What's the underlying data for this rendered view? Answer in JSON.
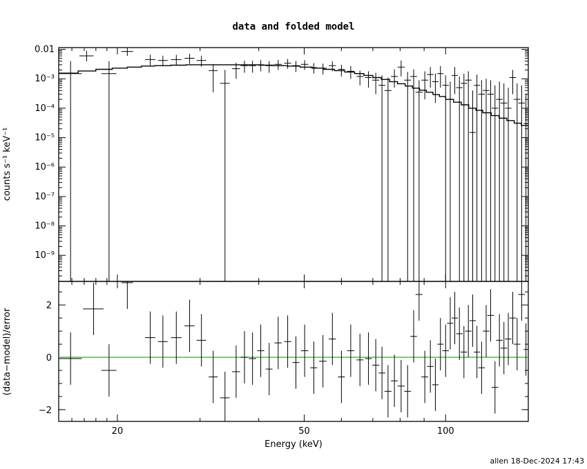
{
  "title": "data and folded model",
  "footer": "allen 18-Dec-2024 17:43",
  "colors": {
    "data": "#000000",
    "model": "#000000",
    "zero_line": "#00cc00"
  },
  "chart_data": [
    {
      "type": "scatter",
      "panel": "top",
      "scale": {
        "x": "log",
        "y": "log"
      },
      "xlim": [
        15,
        150
      ],
      "ylim": [
        1.3e-10,
        0.0115
      ],
      "xlabel": "",
      "ylabel": "counts s⁻¹ keV⁻¹",
      "ytick_labels": [
        "0.01",
        "10⁻³",
        "10⁻⁴",
        "10⁻⁵",
        "10⁻⁶",
        "10⁻⁷",
        "10⁻⁸",
        "10⁻⁹"
      ],
      "ytick_values": [
        0.01,
        0.001,
        0.0001,
        1e-05,
        1e-06,
        1e-07,
        1e-08,
        1e-09
      ],
      "model_steps": [
        [
          15.0,
          16.5,
          0.00155
        ],
        [
          16.5,
          18.0,
          0.00185
        ],
        [
          18.0,
          19.5,
          0.0021
        ],
        [
          19.5,
          21.0,
          0.0023
        ],
        [
          21.0,
          22.5,
          0.0025
        ],
        [
          22.5,
          24.0,
          0.0027
        ],
        [
          24.0,
          26.0,
          0.0028
        ],
        [
          26.0,
          28.0,
          0.0029
        ],
        [
          28.0,
          31.0,
          0.003
        ],
        [
          31.0,
          34.0,
          0.003
        ],
        [
          34.0,
          37.0,
          0.003
        ],
        [
          37.0,
          40.0,
          0.003
        ],
        [
          40.0,
          43.0,
          0.0029
        ],
        [
          43.0,
          46.0,
          0.0028
        ],
        [
          46.0,
          49.0,
          0.0027
        ],
        [
          49.0,
          52.0,
          0.0025
        ],
        [
          52.0,
          55.0,
          0.0023
        ],
        [
          55.0,
          58.0,
          0.0021
        ],
        [
          58.0,
          61.0,
          0.0019
        ],
        [
          61.0,
          64.0,
          0.0017
        ],
        [
          64.0,
          67.0,
          0.0015
        ],
        [
          67.0,
          70.0,
          0.0013
        ],
        [
          70.0,
          73.0,
          0.0011
        ],
        [
          73.0,
          76.0,
          0.00095
        ],
        [
          76.0,
          79.0,
          0.0008
        ],
        [
          79.0,
          82.0,
          0.00068
        ],
        [
          82.0,
          85.0,
          0.00057
        ],
        [
          85.0,
          88.0,
          0.00048
        ],
        [
          88.0,
          91.0,
          0.00041
        ],
        [
          91.0,
          94.0,
          0.00035
        ],
        [
          94.0,
          97.0,
          0.00029
        ],
        [
          97.0,
          100.0,
          0.00025
        ],
        [
          100.0,
          104.0,
          0.0002
        ],
        [
          104.0,
          108.0,
          0.00016
        ],
        [
          108.0,
          112.0,
          0.00013
        ],
        [
          112.0,
          116.0,
          0.0001
        ],
        [
          116.0,
          120.0,
          8.5e-05
        ],
        [
          120.0,
          125.0,
          7e-05
        ],
        [
          125.0,
          130.0,
          5.6e-05
        ],
        [
          130.0,
          135.0,
          4.6e-05
        ],
        [
          135.0,
          140.0,
          3.8e-05
        ],
        [
          140.0,
          145.0,
          3.1e-05
        ],
        [
          145.0,
          150.0,
          2.6e-05
        ]
      ],
      "points": [
        {
          "x": 15.9,
          "xerr": 0.9,
          "y": 0.0015,
          "ylo": 1.3e-10,
          "yhi": 0.004
        },
        {
          "x": 17.2,
          "xerr": 0.6,
          "y": 0.006,
          "ylo": 0.0039,
          "yhi": 0.0089
        },
        {
          "x": 19.2,
          "xerr": 0.7,
          "y": 0.0015,
          "ylo": 1.3e-10,
          "yhi": 0.004
        },
        {
          "x": 21.0,
          "xerr": 0.6,
          "y": 0.0085,
          "ylo": 0.006,
          "yhi": 0.0115
        },
        {
          "x": 23.5,
          "xerr": 0.6,
          "y": 0.0045,
          "ylo": 0.0028,
          "yhi": 0.0066
        },
        {
          "x": 25.0,
          "xerr": 0.6,
          "y": 0.0042,
          "ylo": 0.0027,
          "yhi": 0.0061
        },
        {
          "x": 26.7,
          "xerr": 0.7,
          "y": 0.0045,
          "ylo": 0.0029,
          "yhi": 0.0065
        },
        {
          "x": 28.5,
          "xerr": 0.7,
          "y": 0.005,
          "ylo": 0.0032,
          "yhi": 0.0071
        },
        {
          "x": 30.2,
          "xerr": 0.7,
          "y": 0.0042,
          "ylo": 0.0026,
          "yhi": 0.0061
        },
        {
          "x": 32.0,
          "xerr": 0.7,
          "y": 0.0019,
          "ylo": 0.00035,
          "yhi": 0.0032
        },
        {
          "x": 33.9,
          "xerr": 0.8,
          "y": 0.0007,
          "ylo": 1.3e-10,
          "yhi": 0.002
        },
        {
          "x": 35.8,
          "xerr": 0.7,
          "y": 0.0022,
          "ylo": 0.001,
          "yhi": 0.0035
        },
        {
          "x": 37.3,
          "xerr": 0.7,
          "y": 0.0028,
          "ylo": 0.0016,
          "yhi": 0.0041
        },
        {
          "x": 38.8,
          "xerr": 0.7,
          "y": 0.0028,
          "ylo": 0.0016,
          "yhi": 0.0041
        },
        {
          "x": 40.4,
          "xerr": 0.7,
          "y": 0.003,
          "ylo": 0.0018,
          "yhi": 0.0043
        },
        {
          "x": 42.1,
          "xerr": 0.7,
          "y": 0.0028,
          "ylo": 0.0016,
          "yhi": 0.004
        },
        {
          "x": 44.0,
          "xerr": 0.8,
          "y": 0.0031,
          "ylo": 0.002,
          "yhi": 0.0044
        },
        {
          "x": 46.1,
          "xerr": 0.8,
          "y": 0.0034,
          "ylo": 0.0022,
          "yhi": 0.0047
        },
        {
          "x": 48.0,
          "xerr": 0.8,
          "y": 0.0028,
          "ylo": 0.0017,
          "yhi": 0.004
        },
        {
          "x": 50.1,
          "xerr": 0.9,
          "y": 0.0031,
          "ylo": 0.002,
          "yhi": 0.0043
        },
        {
          "x": 52.4,
          "xerr": 0.9,
          "y": 0.0024,
          "ylo": 0.0015,
          "yhi": 0.0034
        },
        {
          "x": 54.8,
          "xerr": 1.0,
          "y": 0.0023,
          "ylo": 0.0014,
          "yhi": 0.0033
        },
        {
          "x": 57.4,
          "xerr": 1.0,
          "y": 0.0028,
          "ylo": 0.0018,
          "yhi": 0.0039
        },
        {
          "x": 60.0,
          "xerr": 1.0,
          "y": 0.0021,
          "ylo": 0.0012,
          "yhi": 0.003
        },
        {
          "x": 62.8,
          "xerr": 1.1,
          "y": 0.0018,
          "ylo": 0.001,
          "yhi": 0.0027
        },
        {
          "x": 65.7,
          "xerr": 1.1,
          "y": 0.0012,
          "ylo": 0.0006,
          "yhi": 0.0019
        },
        {
          "x": 68.5,
          "xerr": 1.1,
          "y": 0.0011,
          "ylo": 0.0005,
          "yhi": 0.0018
        },
        {
          "x": 71.0,
          "xerr": 1.2,
          "y": 0.0009,
          "ylo": 0.0003,
          "yhi": 0.0016
        },
        {
          "x": 73.2,
          "xerr": 1.2,
          "y": 0.0006,
          "ylo": 1.3e-10,
          "yhi": 0.0013
        },
        {
          "x": 75.4,
          "xerr": 1.3,
          "y": 0.0004,
          "ylo": 1.3e-10,
          "yhi": 0.0011
        },
        {
          "x": 77.8,
          "xerr": 1.3,
          "y": 0.0012,
          "ylo": 0.0005,
          "yhi": 0.0021
        },
        {
          "x": 80.4,
          "xerr": 1.4,
          "y": 0.0025,
          "ylo": 0.0012,
          "yhi": 0.0042
        },
        {
          "x": 83.0,
          "xerr": 1.4,
          "y": 0.0009,
          "ylo": 1.3e-10,
          "yhi": 0.0017
        },
        {
          "x": 85.5,
          "xerr": 1.4,
          "y": 0.0012,
          "ylo": 1.3e-10,
          "yhi": 0.0021
        },
        {
          "x": 87.8,
          "xerr": 1.5,
          "y": 0.00035,
          "ylo": 1.3e-10,
          "yhi": 0.0009
        },
        {
          "x": 90.3,
          "xerr": 1.5,
          "y": 0.0009,
          "ylo": 0.0002,
          "yhi": 0.0018
        },
        {
          "x": 92.8,
          "xerr": 1.5,
          "y": 0.0014,
          "ylo": 0.0005,
          "yhi": 0.0025
        },
        {
          "x": 95.1,
          "xerr": 1.5,
          "y": 0.0008,
          "ylo": 0.00015,
          "yhi": 0.0015
        },
        {
          "x": 97.5,
          "xerr": 1.5,
          "y": 0.0015,
          "ylo": 0.0005,
          "yhi": 0.0027
        },
        {
          "x": 100.0,
          "xerr": 1.6,
          "y": 0.0006,
          "ylo": 1.3e-10,
          "yhi": 0.0013
        },
        {
          "x": 102.3,
          "xerr": 1.6,
          "y": 0.0002,
          "ylo": 1.3e-10,
          "yhi": 0.0008
        },
        {
          "x": 104.6,
          "xerr": 1.6,
          "y": 0.0013,
          "ylo": 0.0003,
          "yhi": 0.0025
        },
        {
          "x": 107.0,
          "xerr": 1.7,
          "y": 0.0005,
          "ylo": 1.3e-10,
          "yhi": 0.0012
        },
        {
          "x": 109.4,
          "xerr": 1.7,
          "y": 0.0007,
          "ylo": 1.3e-10,
          "yhi": 0.0015
        },
        {
          "x": 111.8,
          "xerr": 1.8,
          "y": 0.0009,
          "ylo": 1.3e-10,
          "yhi": 0.0018
        },
        {
          "x": 114.2,
          "xerr": 1.8,
          "y": 1.5e-05,
          "ylo": 1.3e-10,
          "yhi": 0.0004
        },
        {
          "x": 116.6,
          "xerr": 1.8,
          "y": 0.0006,
          "ylo": 1.3e-10,
          "yhi": 0.0014
        },
        {
          "x": 119.3,
          "xerr": 1.9,
          "y": 0.0003,
          "ylo": 1.3e-10,
          "yhi": 0.0009
        },
        {
          "x": 122.0,
          "xerr": 2.0,
          "y": 0.0004,
          "ylo": 1.3e-10,
          "yhi": 0.001
        },
        {
          "x": 124.7,
          "xerr": 2.0,
          "y": 0.0003,
          "ylo": 1.3e-10,
          "yhi": 0.0009
        },
        {
          "x": 127.4,
          "xerr": 2.1,
          "y": 0.0001,
          "ylo": 1.3e-10,
          "yhi": 0.0006
        },
        {
          "x": 130.2,
          "xerr": 2.1,
          "y": 0.0002,
          "ylo": 1.3e-10,
          "yhi": 0.0008
        },
        {
          "x": 133.1,
          "xerr": 2.2,
          "y": 0.00015,
          "ylo": 1.3e-10,
          "yhi": 0.0007
        },
        {
          "x": 136.0,
          "xerr": 2.2,
          "y": 0.0001,
          "ylo": 1.3e-10,
          "yhi": 0.0005
        },
        {
          "x": 139.0,
          "xerr": 2.3,
          "y": 0.0011,
          "ylo": 0.0003,
          "yhi": 0.002
        },
        {
          "x": 142.0,
          "xerr": 2.3,
          "y": 0.0002,
          "ylo": 1.3e-10,
          "yhi": 0.0007
        },
        {
          "x": 145.2,
          "xerr": 2.4,
          "y": 0.00015,
          "ylo": 1.3e-10,
          "yhi": 0.0006
        },
        {
          "x": 148.3,
          "xerr": 1.7,
          "y": 3e-05,
          "ylo": 1.3e-10,
          "yhi": 0.0003
        }
      ]
    },
    {
      "type": "scatter",
      "panel": "bottom",
      "scale": {
        "x": "log",
        "y": "linear"
      },
      "xlim": [
        15,
        150
      ],
      "ylim": [
        -2.45,
        2.9
      ],
      "xlabel": "Energy (keV)",
      "ylabel": "(data−model)/error",
      "xtick_labels": [
        "20",
        "50",
        "100"
      ],
      "xtick_values": [
        20,
        50,
        100
      ],
      "ytick_labels": [
        "2",
        "0",
        "−2"
      ],
      "ytick_values": [
        2,
        0,
        -2
      ],
      "zero_line": 0,
      "points": [
        {
          "x": 15.9,
          "xerr": 0.9,
          "y": -0.05,
          "yerr": 1.0
        },
        {
          "x": 17.8,
          "xerr": 0.9,
          "y": 1.85,
          "yerr": 1.0
        },
        {
          "x": 19.2,
          "xerr": 0.7,
          "y": -0.5,
          "yerr": 1.0
        },
        {
          "x": 21.0,
          "xerr": 0.6,
          "y": 2.85,
          "yerr": 1.0
        },
        {
          "x": 23.5,
          "xerr": 0.6,
          "y": 0.75,
          "yerr": 1.0
        },
        {
          "x": 25.0,
          "xerr": 0.6,
          "y": 0.6,
          "yerr": 1.0
        },
        {
          "x": 26.7,
          "xerr": 0.7,
          "y": 0.75,
          "yerr": 1.0
        },
        {
          "x": 28.5,
          "xerr": 0.7,
          "y": 1.2,
          "yerr": 1.0
        },
        {
          "x": 30.2,
          "xerr": 0.7,
          "y": 0.65,
          "yerr": 1.0
        },
        {
          "x": 32.0,
          "xerr": 0.7,
          "y": -0.75,
          "yerr": 1.0
        },
        {
          "x": 33.9,
          "xerr": 0.8,
          "y": -1.55,
          "yerr": 1.0
        },
        {
          "x": 35.8,
          "xerr": 0.7,
          "y": -0.55,
          "yerr": 1.0
        },
        {
          "x": 37.3,
          "xerr": 0.7,
          "y": 0.0,
          "yerr": 1.0
        },
        {
          "x": 38.8,
          "xerr": 0.7,
          "y": -0.05,
          "yerr": 1.0
        },
        {
          "x": 40.4,
          "xerr": 0.7,
          "y": 0.25,
          "yerr": 1.0
        },
        {
          "x": 42.1,
          "xerr": 0.7,
          "y": -0.45,
          "yerr": 1.0
        },
        {
          "x": 44.0,
          "xerr": 0.8,
          "y": 0.55,
          "yerr": 1.0
        },
        {
          "x": 46.1,
          "xerr": 0.8,
          "y": 0.6,
          "yerr": 1.0
        },
        {
          "x": 48.0,
          "xerr": 0.8,
          "y": -0.2,
          "yerr": 1.0
        },
        {
          "x": 50.1,
          "xerr": 0.9,
          "y": 0.25,
          "yerr": 1.0
        },
        {
          "x": 52.4,
          "xerr": 0.9,
          "y": -0.4,
          "yerr": 1.0
        },
        {
          "x": 54.8,
          "xerr": 1.0,
          "y": -0.15,
          "yerr": 1.0
        },
        {
          "x": 57.4,
          "xerr": 1.0,
          "y": 0.7,
          "yerr": 1.0
        },
        {
          "x": 60.0,
          "xerr": 1.0,
          "y": -0.75,
          "yerr": 1.0
        },
        {
          "x": 62.8,
          "xerr": 1.1,
          "y": 0.25,
          "yerr": 1.0
        },
        {
          "x": 65.7,
          "xerr": 1.1,
          "y": -0.1,
          "yerr": 1.0
        },
        {
          "x": 68.5,
          "xerr": 1.1,
          "y": -0.05,
          "yerr": 1.0
        },
        {
          "x": 71.0,
          "xerr": 1.2,
          "y": -0.3,
          "yerr": 1.0
        },
        {
          "x": 73.2,
          "xerr": 1.2,
          "y": -0.6,
          "yerr": 1.0
        },
        {
          "x": 75.4,
          "xerr": 1.3,
          "y": -1.3,
          "yerr": 1.0
        },
        {
          "x": 77.8,
          "xerr": 1.3,
          "y": -0.9,
          "yerr": 1.0
        },
        {
          "x": 80.4,
          "xerr": 1.4,
          "y": -1.1,
          "yerr": 1.0
        },
        {
          "x": 83.0,
          "xerr": 1.4,
          "y": -1.3,
          "yerr": 1.0
        },
        {
          "x": 85.5,
          "xerr": 1.4,
          "y": 0.8,
          "yerr": 1.0
        },
        {
          "x": 87.8,
          "xerr": 1.5,
          "y": 2.4,
          "yerr": 1.0
        },
        {
          "x": 90.3,
          "xerr": 1.5,
          "y": -0.75,
          "yerr": 1.0
        },
        {
          "x": 92.8,
          "xerr": 1.5,
          "y": -0.35,
          "yerr": 1.0
        },
        {
          "x": 95.1,
          "xerr": 1.5,
          "y": -1.05,
          "yerr": 1.0
        },
        {
          "x": 97.5,
          "xerr": 1.5,
          "y": 0.5,
          "yerr": 1.0
        },
        {
          "x": 100.0,
          "xerr": 1.6,
          "y": 0.25,
          "yerr": 1.0
        },
        {
          "x": 102.3,
          "xerr": 1.6,
          "y": 1.3,
          "yerr": 1.0
        },
        {
          "x": 104.6,
          "xerr": 1.6,
          "y": 1.5,
          "yerr": 1.0
        },
        {
          "x": 107.0,
          "xerr": 1.7,
          "y": 0.9,
          "yerr": 1.0
        },
        {
          "x": 109.4,
          "xerr": 1.7,
          "y": 0.2,
          "yerr": 1.0
        },
        {
          "x": 111.8,
          "xerr": 1.8,
          "y": 1.0,
          "yerr": 1.0
        },
        {
          "x": 114.2,
          "xerr": 1.8,
          "y": 1.4,
          "yerr": 1.0
        },
        {
          "x": 116.6,
          "xerr": 1.8,
          "y": 0.2,
          "yerr": 1.0
        },
        {
          "x": 119.3,
          "xerr": 1.9,
          "y": -0.4,
          "yerr": 1.0
        },
        {
          "x": 122.0,
          "xerr": 2.0,
          "y": 1.0,
          "yerr": 1.0
        },
        {
          "x": 124.7,
          "xerr": 2.0,
          "y": 1.6,
          "yerr": 1.0
        },
        {
          "x": 127.4,
          "xerr": 2.1,
          "y": -1.15,
          "yerr": 1.0
        },
        {
          "x": 130.2,
          "xerr": 2.1,
          "y": 0.65,
          "yerr": 1.0
        },
        {
          "x": 133.1,
          "xerr": 2.2,
          "y": 0.35,
          "yerr": 1.0
        },
        {
          "x": 136.0,
          "xerr": 2.2,
          "y": 0.7,
          "yerr": 1.0
        },
        {
          "x": 139.0,
          "xerr": 2.3,
          "y": 1.5,
          "yerr": 1.0
        },
        {
          "x": 142.0,
          "xerr": 2.3,
          "y": 0.5,
          "yerr": 1.0
        },
        {
          "x": 145.2,
          "xerr": 2.4,
          "y": 2.4,
          "yerr": 1.0
        },
        {
          "x": 148.3,
          "xerr": 1.7,
          "y": 0.3,
          "yerr": 1.0
        }
      ]
    }
  ]
}
